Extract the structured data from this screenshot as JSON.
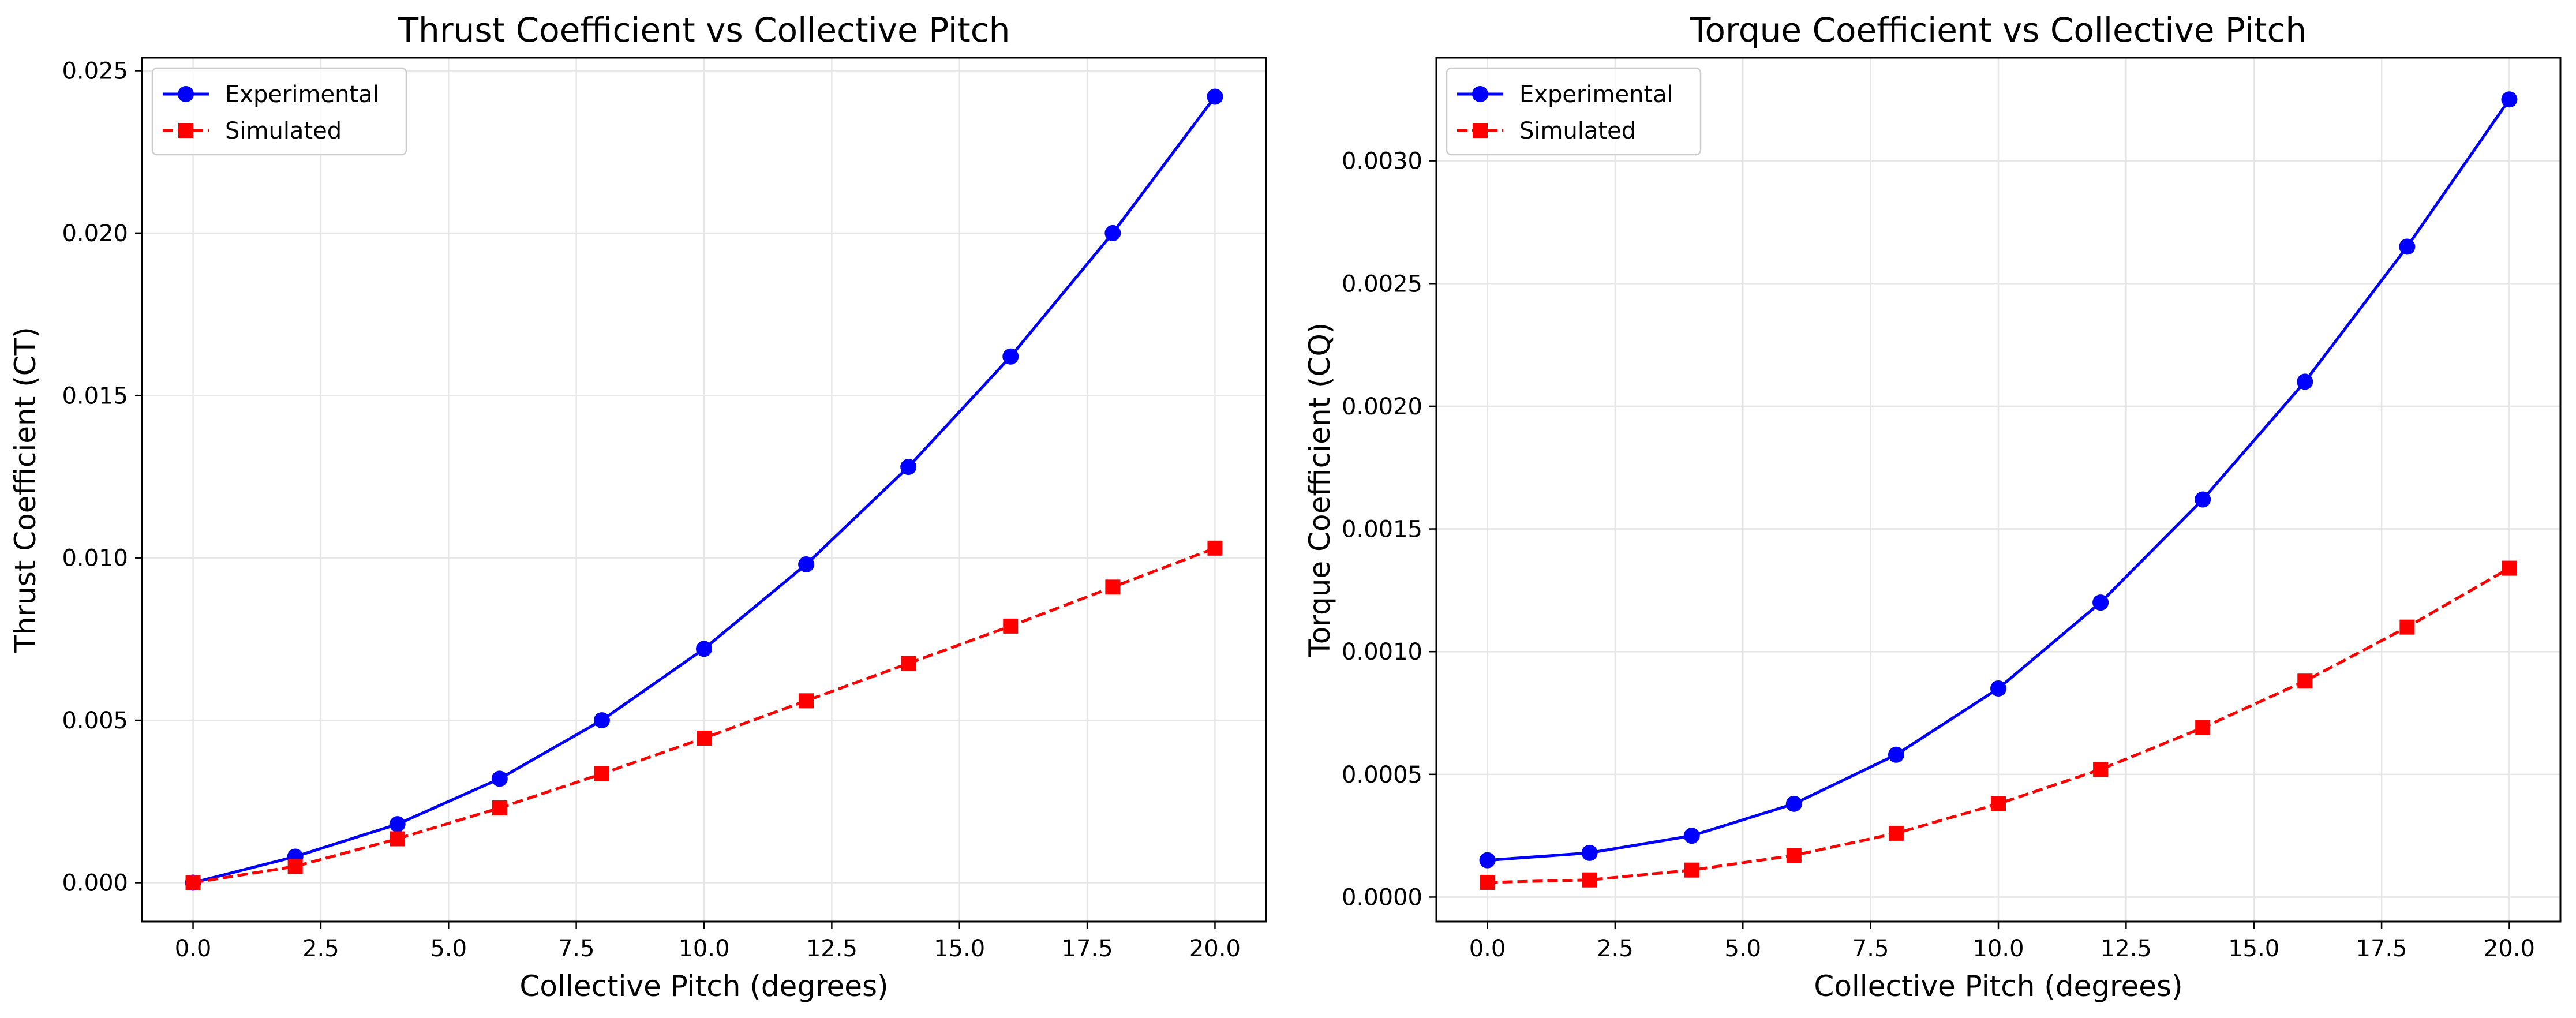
{
  "colors": {
    "experimental": "#0000ff",
    "simulated": "#ff0000",
    "grid": "#e6e6e6",
    "axes": "#000000"
  },
  "chart_data": [
    {
      "type": "line",
      "title": "Thrust Coefficient vs Collective Pitch",
      "xlabel": "Collective Pitch (degrees)",
      "ylabel": "Thrust Coefficient (CT)",
      "xlim": [
        -1.0,
        21.0
      ],
      "ylim": [
        -0.0012,
        0.0254
      ],
      "xticks": [
        0,
        2.5,
        5,
        7.5,
        10,
        12.5,
        15,
        17.5,
        20
      ],
      "xtick_labels": [
        "0.0",
        "2.5",
        "5.0",
        "7.5",
        "10.0",
        "12.5",
        "15.0",
        "17.5",
        "20.0"
      ],
      "yticks": [
        0,
        0.005,
        0.01,
        0.015,
        0.02,
        0.025
      ],
      "ytick_labels": [
        "0.000",
        "0.005",
        "0.010",
        "0.015",
        "0.020",
        "0.025"
      ],
      "grid": true,
      "legend_position": "top-left",
      "x": [
        0,
        2,
        4,
        6,
        8,
        10,
        12,
        14,
        16,
        18,
        20
      ],
      "series": [
        {
          "name": "Experimental",
          "style": "solid",
          "marker": "circle",
          "values": [
            0.0,
            0.0008,
            0.0018,
            0.0032,
            0.005,
            0.0072,
            0.0098,
            0.0128,
            0.0162,
            0.02,
            0.0242
          ]
        },
        {
          "name": "Simulated",
          "style": "dashed",
          "marker": "square",
          "values": [
            0.0,
            0.0005,
            0.00135,
            0.0023,
            0.00335,
            0.00445,
            0.0056,
            0.00675,
            0.0079,
            0.0091,
            0.0103
          ]
        }
      ]
    },
    {
      "type": "line",
      "title": "Torque Coefficient vs Collective Pitch",
      "xlabel": "Collective Pitch (degrees)",
      "ylabel": "Torque Coefficient (CQ)",
      "xlim": [
        -1.0,
        21.0
      ],
      "ylim": [
        -0.0001,
        0.00342
      ],
      "xticks": [
        0,
        2.5,
        5,
        7.5,
        10,
        12.5,
        15,
        17.5,
        20
      ],
      "xtick_labels": [
        "0.0",
        "2.5",
        "5.0",
        "7.5",
        "10.0",
        "12.5",
        "15.0",
        "17.5",
        "20.0"
      ],
      "yticks": [
        0,
        0.0005,
        0.001,
        0.0015,
        0.002,
        0.0025,
        0.003
      ],
      "ytick_labels": [
        "0.0000",
        "0.0005",
        "0.0010",
        "0.0015",
        "0.0020",
        "0.0025",
        "0.0030"
      ],
      "grid": true,
      "legend_position": "top-left",
      "x": [
        0,
        2,
        4,
        6,
        8,
        10,
        12,
        14,
        16,
        18,
        20
      ],
      "series": [
        {
          "name": "Experimental",
          "style": "solid",
          "marker": "circle",
          "values": [
            0.00015,
            0.00018,
            0.00025,
            0.00038,
            0.00058,
            0.00085,
            0.0012,
            0.00162,
            0.0021,
            0.00265,
            0.00325
          ]
        },
        {
          "name": "Simulated",
          "style": "dashed",
          "marker": "square",
          "values": [
            6e-05,
            7e-05,
            0.00011,
            0.00017,
            0.00026,
            0.00038,
            0.00052,
            0.00069,
            0.00088,
            0.0011,
            0.00134
          ]
        }
      ]
    }
  ]
}
